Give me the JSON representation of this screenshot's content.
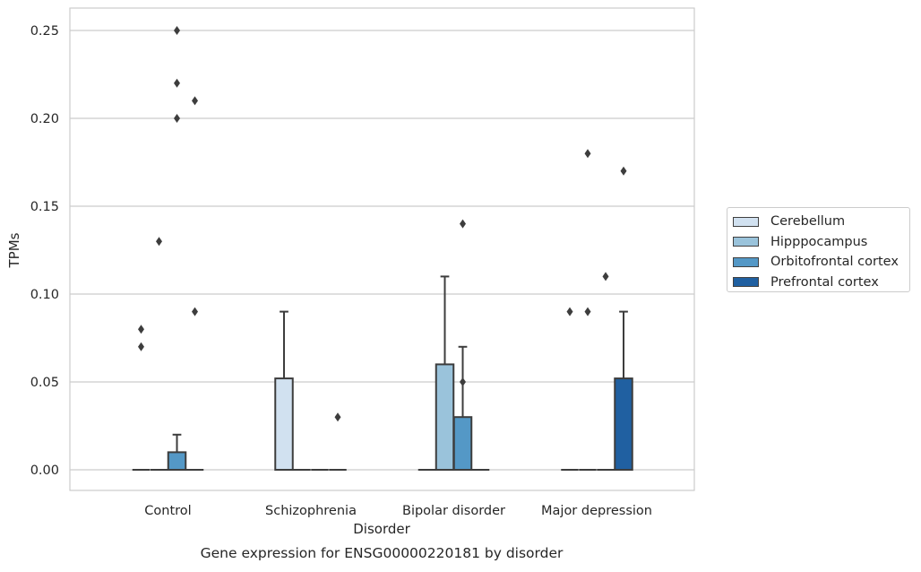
{
  "chart_data": {
    "type": "box",
    "title": "Gene expression for ENSG00000220181 by disorder",
    "xlabel": "Disorder",
    "ylabel": "TPMs",
    "ylim": [
      -0.012,
      0.2625
    ],
    "yticks": [
      "0.00",
      "0.05",
      "0.10",
      "0.15",
      "0.20",
      "0.25"
    ],
    "ytick_values": [
      0,
      0.05,
      0.1,
      0.15,
      0.2,
      0.25
    ],
    "grid": true,
    "legend_position": "right",
    "categories": [
      "Control",
      "Schizophrenia",
      "Bipolar disorder",
      "Major depression"
    ],
    "series": [
      {
        "name": "Cerebellum",
        "color": "#d1e1f0",
        "boxes": [
          {
            "q1": 0,
            "median": 0,
            "q3": 0,
            "whisker_low": 0,
            "whisker_high": 0,
            "outliers": [
              0.07,
              0.08
            ]
          },
          {
            "q1": 0,
            "median": 0,
            "q3": 0.052,
            "whisker_low": 0,
            "whisker_high": 0.09,
            "outliers": []
          },
          {
            "q1": 0,
            "median": 0,
            "q3": 0,
            "whisker_low": 0,
            "whisker_high": 0,
            "outliers": []
          },
          {
            "q1": 0,
            "median": 0,
            "q3": 0,
            "whisker_low": 0,
            "whisker_high": 0,
            "outliers": [
              0.09
            ]
          }
        ]
      },
      {
        "name": "Hipppocampus",
        "color": "#9ac3db",
        "boxes": [
          {
            "q1": 0,
            "median": 0,
            "q3": 0,
            "whisker_low": 0,
            "whisker_high": 0,
            "outliers": [
              0.13
            ]
          },
          {
            "q1": 0,
            "median": 0,
            "q3": 0,
            "whisker_low": 0,
            "whisker_high": 0,
            "outliers": []
          },
          {
            "q1": 0,
            "median": 0,
            "q3": 0.06,
            "whisker_low": 0,
            "whisker_high": 0.11,
            "outliers": []
          },
          {
            "q1": 0,
            "median": 0,
            "q3": 0,
            "whisker_low": 0,
            "whisker_high": 0,
            "outliers": [
              0.09,
              0.18
            ]
          }
        ]
      },
      {
        "name": "Orbitofrontal cortex",
        "color": "#5498c6",
        "boxes": [
          {
            "q1": 0,
            "median": 0,
            "q3": 0.01,
            "whisker_low": 0,
            "whisker_high": 0.02,
            "outliers": [
              0.2,
              0.22,
              0.25
            ]
          },
          {
            "q1": 0,
            "median": 0,
            "q3": 0,
            "whisker_low": 0,
            "whisker_high": 0,
            "outliers": []
          },
          {
            "q1": 0,
            "median": 0,
            "q3": 0.03,
            "whisker_low": 0,
            "whisker_high": 0.07,
            "outliers": [
              0.05,
              0.14
            ]
          },
          {
            "q1": 0,
            "median": 0,
            "q3": 0,
            "whisker_low": 0,
            "whisker_high": 0,
            "outliers": [
              0.11
            ]
          }
        ]
      },
      {
        "name": "Prefrontal cortex",
        "color": "#2060a1",
        "boxes": [
          {
            "q1": 0,
            "median": 0,
            "q3": 0,
            "whisker_low": 0,
            "whisker_high": 0,
            "outliers": [
              0.09,
              0.21
            ]
          },
          {
            "q1": 0,
            "median": 0,
            "q3": 0,
            "whisker_low": 0,
            "whisker_high": 0,
            "outliers": [
              0.03
            ]
          },
          {
            "q1": 0,
            "median": 0,
            "q3": 0,
            "whisker_low": 0,
            "whisker_high": 0,
            "outliers": []
          },
          {
            "q1": 0,
            "median": 0,
            "q3": 0.052,
            "whisker_low": 0,
            "whisker_high": 0.09,
            "outliers": [
              0.17
            ]
          }
        ]
      }
    ]
  }
}
